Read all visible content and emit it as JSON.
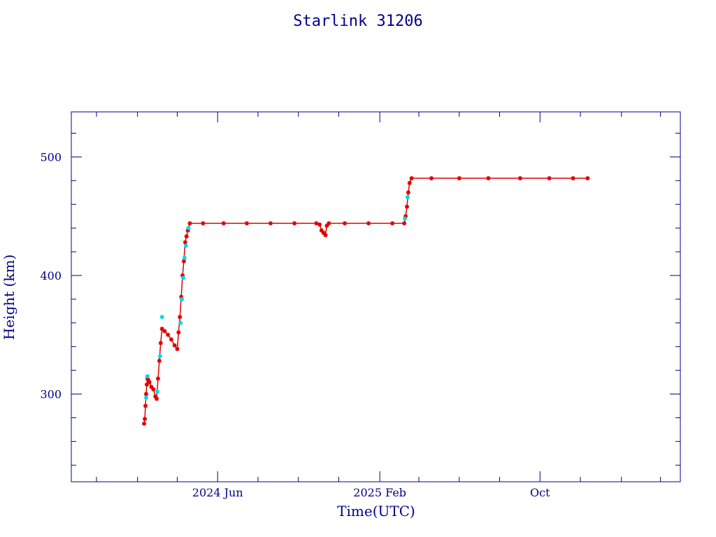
{
  "colors": {
    "axis": "#00008b",
    "text": "#00008b",
    "series_main": "#e00000",
    "series_alt": "#00d8e8",
    "background": "#ffffff"
  },
  "chart_data": {
    "type": "scatter",
    "title": "Starlink 31206",
    "xlabel": "Time(UTC)",
    "ylabel": "Height (km)",
    "xlim": [
      "2023-10-24",
      "2026-05-01"
    ],
    "ylim": [
      226,
      538
    ],
    "x_ticks": [
      {
        "date": "2024-06-01",
        "label": "2024 Jun"
      },
      {
        "date": "2025-02-01",
        "label": "2025 Feb"
      },
      {
        "date": "2025-10-01",
        "label": "Oct"
      }
    ],
    "y_ticks": [
      {
        "value": 300,
        "label": "300"
      },
      {
        "value": 400,
        "label": "400"
      },
      {
        "value": 500,
        "label": "500"
      }
    ],
    "grid": false,
    "legend": "none",
    "series": [
      {
        "color": "#e00000",
        "points": [
          [
            "2024-02-11",
            275
          ],
          [
            "2024-02-12",
            279
          ],
          [
            "2024-02-13",
            290
          ],
          [
            "2024-02-14",
            300
          ],
          [
            "2024-02-15",
            308
          ],
          [
            "2024-02-16",
            313
          ],
          [
            "2024-02-17",
            312
          ],
          [
            "2024-02-19",
            310
          ],
          [
            "2024-02-22",
            306
          ],
          [
            "2024-02-25",
            304
          ],
          [
            "2024-02-28",
            298
          ],
          [
            "2024-03-01",
            296
          ],
          [
            "2024-03-03",
            313
          ],
          [
            "2024-03-05",
            328
          ],
          [
            "2024-03-07",
            343
          ],
          [
            "2024-03-09",
            355
          ],
          [
            "2024-03-13",
            353
          ],
          [
            "2024-03-18",
            350
          ],
          [
            "2024-03-23",
            346
          ],
          [
            "2024-03-28",
            341
          ],
          [
            "2024-04-01",
            338
          ],
          [
            "2024-04-03",
            352
          ],
          [
            "2024-04-05",
            365
          ],
          [
            "2024-04-07",
            382
          ],
          [
            "2024-04-09",
            400
          ],
          [
            "2024-04-11",
            412
          ],
          [
            "2024-04-13",
            428
          ],
          [
            "2024-04-15",
            433
          ],
          [
            "2024-04-17",
            438
          ],
          [
            "2024-04-20",
            444
          ],
          [
            "2024-05-10",
            444
          ],
          [
            "2024-06-10",
            444
          ],
          [
            "2024-07-15",
            444
          ],
          [
            "2024-08-20",
            444
          ],
          [
            "2024-09-25",
            444
          ],
          [
            "2024-10-28",
            444
          ],
          [
            "2024-11-02",
            443
          ],
          [
            "2024-11-05",
            438
          ],
          [
            "2024-11-08",
            436
          ],
          [
            "2024-11-11",
            434
          ],
          [
            "2024-11-13",
            442
          ],
          [
            "2024-11-16",
            444
          ],
          [
            "2024-12-10",
            444
          ],
          [
            "2025-01-15",
            444
          ],
          [
            "2025-02-20",
            444
          ],
          [
            "2025-03-10",
            444
          ],
          [
            "2025-03-12",
            450
          ],
          [
            "2025-03-14",
            458
          ],
          [
            "2025-03-16",
            470
          ],
          [
            "2025-03-18",
            478
          ],
          [
            "2025-03-21",
            482
          ],
          [
            "2025-04-20",
            482
          ],
          [
            "2025-06-01",
            482
          ],
          [
            "2025-07-15",
            482
          ],
          [
            "2025-09-01",
            482
          ],
          [
            "2025-10-15",
            482
          ],
          [
            "2025-11-20",
            482
          ],
          [
            "2025-12-12",
            482
          ]
        ]
      },
      {
        "color": "#00d8e8",
        "points": [
          [
            "2024-02-14",
            297
          ],
          [
            "2024-02-16",
            315
          ],
          [
            "2024-03-02",
            302
          ],
          [
            "2024-03-06",
            332
          ],
          [
            "2024-03-09",
            365
          ],
          [
            "2024-04-06",
            360
          ],
          [
            "2024-04-08",
            380
          ],
          [
            "2024-04-10",
            398
          ],
          [
            "2024-04-12",
            415
          ],
          [
            "2024-04-14",
            425
          ],
          [
            "2024-04-18",
            440
          ],
          [
            "2025-03-11",
            448
          ],
          [
            "2025-03-15",
            466
          ]
        ]
      }
    ]
  }
}
